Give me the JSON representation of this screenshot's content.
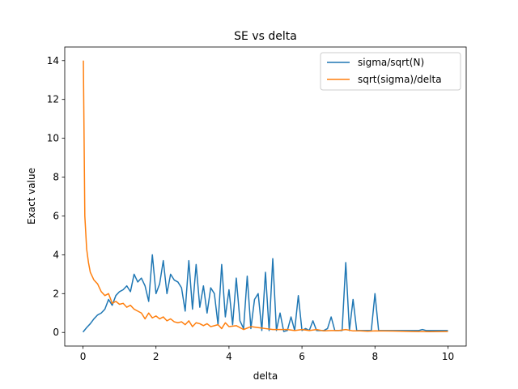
{
  "chart_data": {
    "type": "line",
    "title": "SE vs delta",
    "xlabel": "delta",
    "ylabel": "Exact value",
    "xlim": [
      -0.5,
      10.5
    ],
    "ylim": [
      -0.7,
      14.7
    ],
    "xticks": [
      0,
      2,
      4,
      6,
      8,
      10
    ],
    "yticks": [
      0,
      2,
      4,
      6,
      8,
      10,
      12,
      14
    ],
    "grid": false,
    "legend_position": "top-right",
    "series": [
      {
        "name": "sigma/sqrt(N)",
        "color": "#1f77b4",
        "x": [
          0.0,
          0.1,
          0.2,
          0.3,
          0.4,
          0.5,
          0.6,
          0.7,
          0.8,
          0.9,
          1.0,
          1.1,
          1.2,
          1.3,
          1.4,
          1.5,
          1.6,
          1.7,
          1.8,
          1.9,
          2.0,
          2.1,
          2.2,
          2.3,
          2.4,
          2.5,
          2.6,
          2.7,
          2.8,
          2.9,
          3.0,
          3.1,
          3.2,
          3.3,
          3.4,
          3.5,
          3.6,
          3.7,
          3.8,
          3.9,
          4.0,
          4.1,
          4.2,
          4.3,
          4.4,
          4.5,
          4.6,
          4.7,
          4.8,
          4.9,
          5.0,
          5.1,
          5.2,
          5.3,
          5.4,
          5.5,
          5.6,
          5.7,
          5.8,
          5.9,
          6.0,
          6.1,
          6.2,
          6.3,
          6.4,
          6.5,
          6.6,
          6.7,
          6.8,
          6.9,
          7.0,
          7.1,
          7.2,
          7.3,
          7.4,
          7.5,
          7.6,
          7.7,
          7.8,
          7.9,
          8.0,
          8.1,
          8.2,
          8.3,
          8.4,
          8.5,
          8.6,
          8.7,
          8.8,
          8.9,
          9.0,
          9.1,
          9.2,
          9.3,
          9.4,
          9.5,
          9.6,
          9.7,
          9.8,
          9.9,
          10.0
        ],
        "values": [
          0.02,
          0.25,
          0.45,
          0.7,
          0.9,
          1.0,
          1.2,
          1.7,
          1.4,
          1.9,
          2.1,
          2.2,
          2.4,
          2.1,
          3.0,
          2.6,
          2.8,
          2.4,
          1.6,
          4.0,
          2.0,
          2.5,
          3.7,
          2.0,
          3.0,
          2.7,
          2.6,
          2.3,
          1.1,
          3.7,
          1.2,
          3.5,
          1.3,
          2.4,
          1.0,
          2.3,
          2.0,
          0.4,
          3.5,
          0.8,
          2.2,
          0.4,
          2.8,
          0.6,
          0.2,
          2.9,
          0.2,
          1.7,
          2.0,
          0.1,
          3.1,
          0.1,
          3.8,
          0.1,
          1.0,
          0.05,
          0.1,
          0.8,
          0.1,
          1.9,
          0.1,
          0.2,
          0.1,
          0.6,
          0.1,
          0.1,
          0.1,
          0.2,
          0.8,
          0.1,
          0.1,
          0.1,
          3.6,
          0.1,
          1.7,
          0.1,
          0.1,
          0.1,
          0.1,
          0.1,
          2.0,
          0.1,
          0.1,
          0.1,
          0.1,
          0.1,
          0.1,
          0.1,
          0.1,
          0.1,
          0.1,
          0.1,
          0.1,
          0.15,
          0.1,
          0.1,
          0.1,
          0.1,
          0.1,
          0.1,
          0.1
        ]
      },
      {
        "name": "sqrt(sigma)/delta",
        "color": "#ff7f0e",
        "x": [
          0.01,
          0.05,
          0.1,
          0.15,
          0.2,
          0.3,
          0.4,
          0.5,
          0.6,
          0.7,
          0.8,
          0.9,
          1.0,
          1.1,
          1.2,
          1.3,
          1.4,
          1.5,
          1.6,
          1.7,
          1.8,
          1.9,
          2.0,
          2.1,
          2.2,
          2.3,
          2.4,
          2.5,
          2.6,
          2.7,
          2.8,
          2.9,
          3.0,
          3.1,
          3.2,
          3.3,
          3.4,
          3.5,
          3.6,
          3.7,
          3.8,
          3.9,
          4.0,
          4.2,
          4.4,
          4.6,
          4.8,
          5.0,
          5.2,
          5.4,
          5.6,
          5.8,
          6.0,
          6.2,
          6.4,
          6.6,
          6.8,
          7.0,
          7.2,
          7.4,
          7.6,
          7.8,
          8.0,
          8.5,
          9.0,
          9.5,
          10.0
        ],
        "values": [
          14.0,
          6.0,
          4.3,
          3.6,
          3.1,
          2.7,
          2.5,
          2.1,
          1.9,
          2.0,
          1.5,
          1.6,
          1.45,
          1.5,
          1.3,
          1.4,
          1.2,
          1.1,
          1.0,
          0.7,
          1.0,
          0.75,
          0.85,
          0.7,
          0.8,
          0.6,
          0.7,
          0.55,
          0.5,
          0.55,
          0.4,
          0.6,
          0.3,
          0.5,
          0.45,
          0.35,
          0.45,
          0.3,
          0.35,
          0.4,
          0.2,
          0.5,
          0.3,
          0.35,
          0.15,
          0.3,
          0.25,
          0.2,
          0.15,
          0.15,
          0.15,
          0.1,
          0.15,
          0.1,
          0.15,
          0.08,
          0.1,
          0.1,
          0.15,
          0.08,
          0.08,
          0.06,
          0.08,
          0.07,
          0.05,
          0.04,
          0.05
        ]
      }
    ]
  }
}
